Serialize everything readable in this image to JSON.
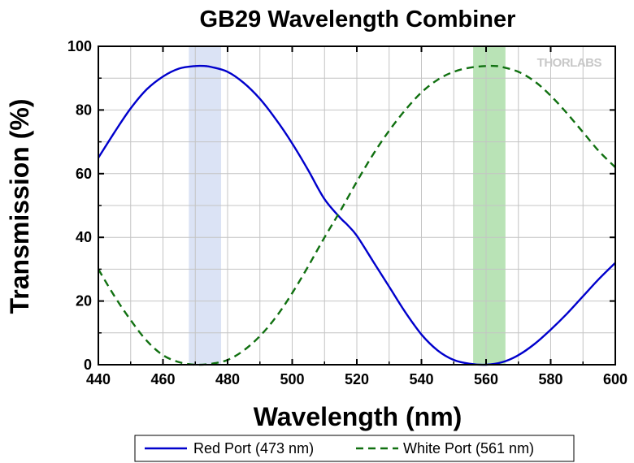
{
  "chart_data": {
    "type": "line",
    "title": "GB29 Wavelength Combiner",
    "xlabel": "Wavelength (nm)",
    "ylabel": "Transmission (%)",
    "xlim": [
      440,
      600
    ],
    "ylim": [
      0,
      100
    ],
    "xticks": [
      440,
      460,
      480,
      500,
      520,
      540,
      560,
      580,
      600
    ],
    "yticks": [
      0,
      20,
      40,
      60,
      80,
      100
    ],
    "grid": true,
    "brand": "THORLABS",
    "bands": [
      {
        "x0": 468,
        "x1": 478,
        "color": "#dbe3f5"
      },
      {
        "x0": 556,
        "x1": 566,
        "color": "#b9e3b6"
      }
    ],
    "legend_position": "bottom",
    "series": [
      {
        "name": "Red Port (473 nm)",
        "color": "#0000cc",
        "dash": "solid",
        "x": [
          440,
          445,
          450,
          455,
          460,
          465,
          470,
          473,
          475,
          480,
          485,
          490,
          495,
          500,
          505,
          510,
          515,
          517,
          520,
          525,
          530,
          535,
          540,
          545,
          550,
          555,
          560,
          565,
          570,
          575,
          580,
          585,
          590,
          595,
          600
        ],
        "y": [
          65,
          73,
          80.5,
          86.5,
          90.5,
          93,
          93.8,
          93.8,
          93.5,
          92,
          88.5,
          83.5,
          77,
          69.5,
          61,
          52,
          46,
          44,
          40.5,
          32.5,
          24.5,
          16.5,
          9.5,
          4.5,
          1.5,
          0.3,
          0,
          0.8,
          3,
          6.5,
          11,
          16,
          21.5,
          27,
          32
        ]
      },
      {
        "name": "White Port (561 nm)",
        "color": "#107010",
        "dash": "dashed",
        "x": [
          440,
          445,
          450,
          455,
          460,
          465,
          470,
          475,
          480,
          485,
          490,
          495,
          500,
          505,
          510,
          515,
          520,
          525,
          530,
          535,
          540,
          545,
          550,
          555,
          560,
          563,
          565,
          570,
          575,
          580,
          585,
          590,
          595,
          600
        ],
        "y": [
          30,
          21.5,
          14,
          7.5,
          3,
          0.8,
          0,
          0.3,
          1.5,
          4.5,
          9,
          15,
          22.5,
          31,
          40,
          48.5,
          57.5,
          66,
          73.5,
          80,
          85.5,
          89.5,
          92,
          93.3,
          93.8,
          93.8,
          93.5,
          92,
          89,
          84.5,
          79,
          73,
          67,
          62
        ]
      }
    ]
  }
}
